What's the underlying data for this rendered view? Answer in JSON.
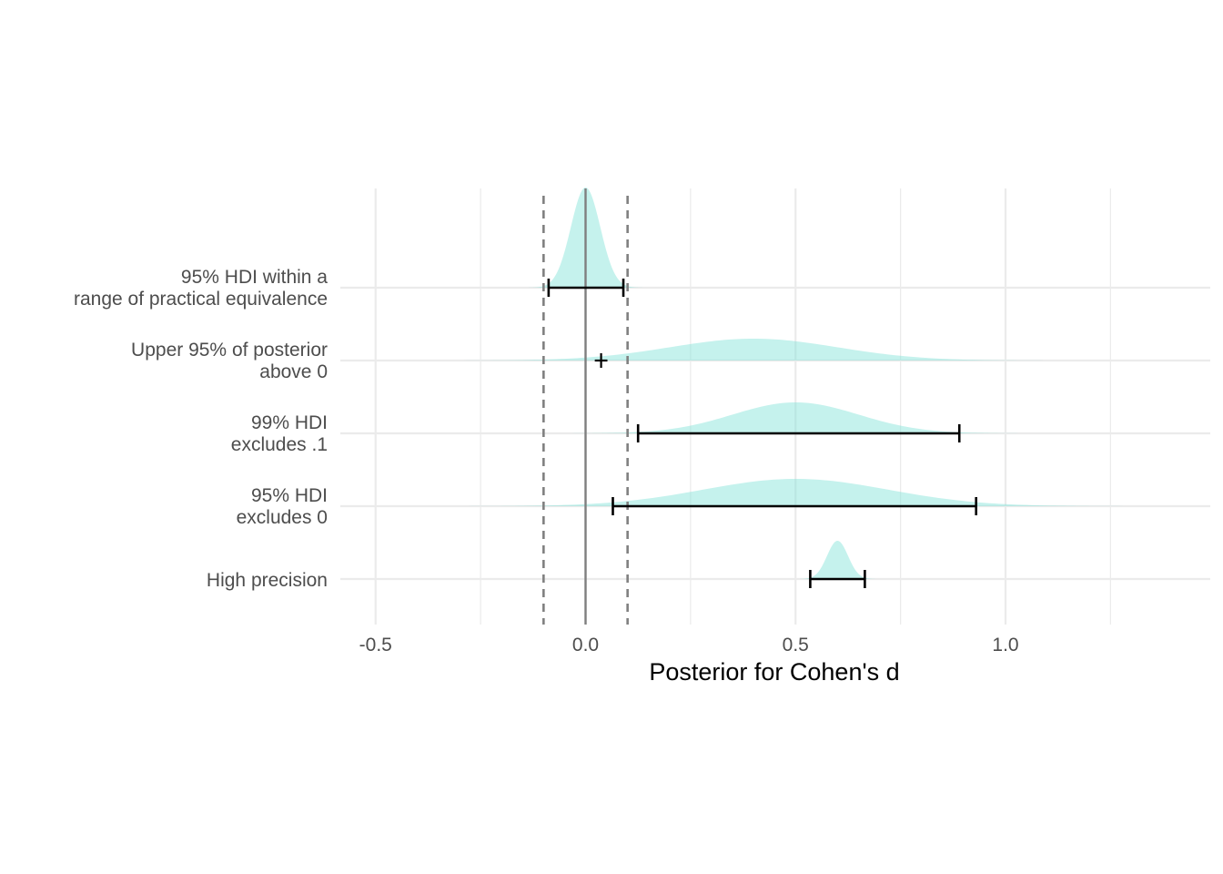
{
  "chart_data": {
    "type": "ridgeline",
    "xlabel": "Posterior for Cohen's d",
    "xlim": [
      -0.58,
      1.48
    ],
    "x_ticks": [
      -0.5,
      0.0,
      0.5,
      1.0
    ],
    "x_tick_labels": [
      "-0.5",
      "0.0",
      "0.5",
      "1.0"
    ],
    "x_minor_gridlines": [
      -0.25,
      0.25,
      0.75,
      1.25
    ],
    "grid": true,
    "rope": [
      -0.1,
      0.1
    ],
    "zero_line": 0.0,
    "colors": {
      "density_fill": "#7fe3d6",
      "interval": "#000000",
      "rope_line": "#808080",
      "zero_line": "#7f7f7f",
      "grid": "#ebebeb",
      "text": "#4d4d4d"
    },
    "rows": [
      {
        "label_lines": [
          "95% HDI within a",
          "range of practical equivalence"
        ],
        "density": {
          "mean": 0.0,
          "sd": 0.035
        },
        "interval": {
          "low": -0.088,
          "high": 0.09,
          "capped": true
        }
      },
      {
        "label_lines": [
          "Upper 95% of posterior",
          "above 0"
        ],
        "density": {
          "mean": 0.4,
          "sd": 0.2
        },
        "interval": {
          "low": 0.022,
          "high": 0.052,
          "capped": true,
          "marker": "plus"
        }
      },
      {
        "label_lines": [
          "99% HDI",
          "excludes .1"
        ],
        "density": {
          "mean": 0.5,
          "sd": 0.15
        },
        "interval": {
          "low": 0.125,
          "high": 0.89,
          "capped": true
        }
      },
      {
        "label_lines": [
          "95% HDI",
          "excludes 0"
        ],
        "density": {
          "mean": 0.5,
          "sd": 0.22
        },
        "interval": {
          "low": 0.065,
          "high": 0.93,
          "capped": true
        }
      },
      {
        "label_lines": [
          "High precision"
        ],
        "density": {
          "mean": 0.6,
          "sd": 0.025
        },
        "interval": {
          "low": 0.535,
          "high": 0.665,
          "capped": true
        }
      }
    ]
  }
}
